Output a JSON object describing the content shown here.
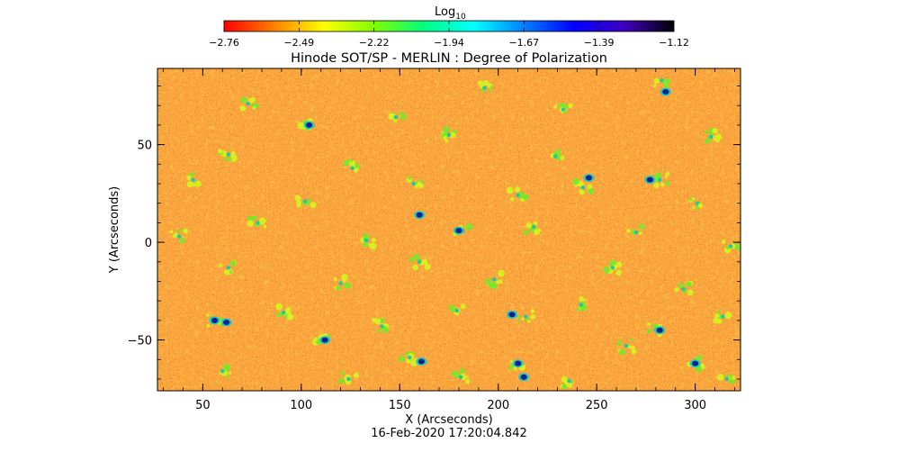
{
  "chart_data": {
    "type": "heatmap",
    "title": "Hinode SOT/SP - MERLIN : Degree of Polarization",
    "xlabel": "X (Arcseconds)",
    "ylabel": "Y (Arcseconds)",
    "timestamp": "16-Feb-2020 17:20:04.842",
    "xlim": [
      27,
      323
    ],
    "ylim": [
      -76,
      89
    ],
    "x_ticks": [
      50,
      100,
      150,
      200,
      250,
      300
    ],
    "y_ticks": [
      -50,
      0,
      50
    ],
    "x_tick_labels": [
      "50",
      "100",
      "150",
      "200",
      "250",
      "300"
    ],
    "y_tick_labels": [
      "−50",
      "0",
      "50"
    ],
    "grid": false,
    "colorbar": {
      "label_main": "Log",
      "label_sub": "10",
      "scale": "log10",
      "range": [
        -2.76,
        -1.12
      ],
      "ticks": [
        "−2.76",
        "−2.49",
        "−2.22",
        "−1.94",
        "−1.67",
        "−1.39",
        "−1.12"
      ],
      "colors": [
        "#ff0000",
        "#ff8000",
        "#ffff00",
        "#80ff00",
        "#00ff80",
        "#00ffff",
        "#0080ff",
        "#0000ff",
        "#4000c0",
        "#000000"
      ]
    },
    "background_color": "#f06a20",
    "blob_color": "#00228a",
    "features": [
      {
        "x": 73,
        "y": 71
      },
      {
        "x": 148,
        "y": 64
      },
      {
        "x": 193,
        "y": 79
      },
      {
        "x": 233,
        "y": 68
      },
      {
        "x": 283,
        "y": 83
      },
      {
        "x": 63,
        "y": 45
      },
      {
        "x": 103,
        "y": 60
      },
      {
        "x": 126,
        "y": 38
      },
      {
        "x": 175,
        "y": 55
      },
      {
        "x": 229,
        "y": 44
      },
      {
        "x": 282,
        "y": 32
      },
      {
        "x": 308,
        "y": 54
      },
      {
        "x": 45,
        "y": 32
      },
      {
        "x": 102,
        "y": 21
      },
      {
        "x": 157,
        "y": 30
      },
      {
        "x": 210,
        "y": 24
      },
      {
        "x": 243,
        "y": 28
      },
      {
        "x": 301,
        "y": 20
      },
      {
        "x": 38,
        "y": 3
      },
      {
        "x": 78,
        "y": 10
      },
      {
        "x": 133,
        "y": 1
      },
      {
        "x": 182,
        "y": 6
      },
      {
        "x": 218,
        "y": 8
      },
      {
        "x": 270,
        "y": 5
      },
      {
        "x": 318,
        "y": -2
      },
      {
        "x": 63,
        "y": -13
      },
      {
        "x": 120,
        "y": -21
      },
      {
        "x": 160,
        "y": -10
      },
      {
        "x": 198,
        "y": -19
      },
      {
        "x": 258,
        "y": -13
      },
      {
        "x": 294,
        "y": -24
      },
      {
        "x": 56,
        "y": -40
      },
      {
        "x": 91,
        "y": -36
      },
      {
        "x": 141,
        "y": -43
      },
      {
        "x": 179,
        "y": -35
      },
      {
        "x": 214,
        "y": -38
      },
      {
        "x": 242,
        "y": -32
      },
      {
        "x": 280,
        "y": -45
      },
      {
        "x": 314,
        "y": -38
      },
      {
        "x": 111,
        "y": -50
      },
      {
        "x": 155,
        "y": -59
      },
      {
        "x": 210,
        "y": -63
      },
      {
        "x": 265,
        "y": -53
      },
      {
        "x": 300,
        "y": -62
      },
      {
        "x": 60,
        "y": -66
      },
      {
        "x": 124,
        "y": -70
      },
      {
        "x": 181,
        "y": -69
      },
      {
        "x": 236,
        "y": -71
      },
      {
        "x": 316,
        "y": -70
      }
    ],
    "dark_spots": [
      {
        "x": 56,
        "y": -40
      },
      {
        "x": 62,
        "y": -41
      },
      {
        "x": 112,
        "y": -50
      },
      {
        "x": 161,
        "y": -61
      },
      {
        "x": 207,
        "y": -37
      },
      {
        "x": 210,
        "y": -62
      },
      {
        "x": 213,
        "y": -69
      },
      {
        "x": 246,
        "y": 33
      },
      {
        "x": 285,
        "y": 77
      },
      {
        "x": 282,
        "y": -45
      },
      {
        "x": 300,
        "y": -62
      },
      {
        "x": 277,
        "y": 32
      },
      {
        "x": 160,
        "y": 14
      },
      {
        "x": 180,
        "y": 6
      },
      {
        "x": 104,
        "y": 60
      }
    ]
  }
}
